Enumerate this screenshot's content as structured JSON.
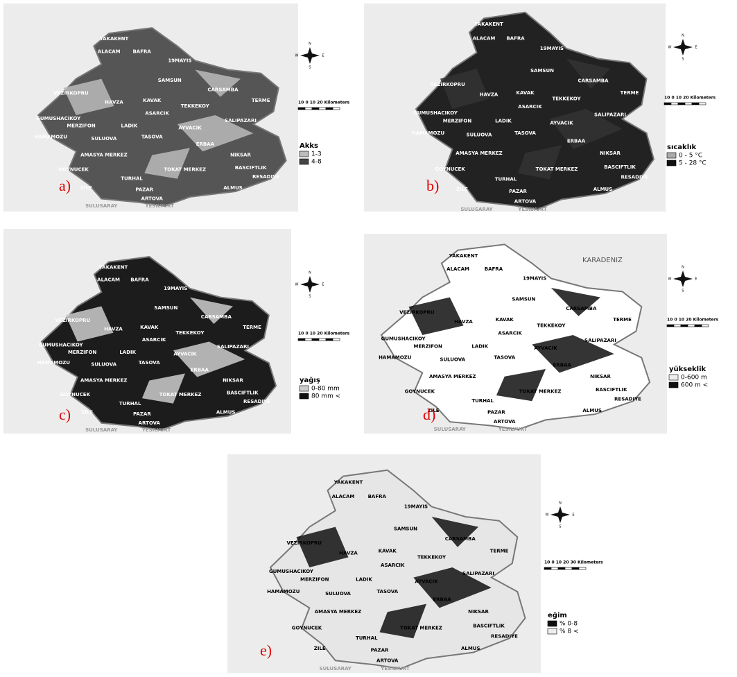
{
  "compass": [
    "N",
    "S",
    "W",
    "E"
  ],
  "places": [
    "YAKAKENT",
    "ALACAM",
    "BAFRA",
    "19MAYIS",
    "SAMSUN",
    "CARSAMBA",
    "VEZIRKOPRU",
    "HAVZA",
    "KAVAK",
    "TEKKEKOY",
    "TERME",
    "GUMUSHACIKOY",
    "MERZIFON",
    "ASARCIK",
    "SALIPAZARI",
    "LADIK",
    "AYVACIK",
    "HAMAMOZU",
    "SULUOVA",
    "TASOVA",
    "ERBAA",
    "AMASYA MERKEZ",
    "NIKSAR",
    "BASCIFTLIK",
    "GOYNUCEK",
    "RESADIYE",
    "TURHAL",
    "ZILE",
    "TOKAT MERKEZ",
    "ALMUS",
    "PAZAR",
    "ARTOVA",
    "SULUSARAY",
    "YESILYURT"
  ],
  "panels": [
    {
      "label": "a)",
      "scale_label": "10 0 10 20 Kilometers",
      "legend": {
        "title": "Akks",
        "items": [
          "1-3",
          "4-8"
        ]
      }
    },
    {
      "label": "b)",
      "scale_label": "10 0 10 20 Kilometers",
      "legend": {
        "title": "sıcaklık",
        "items": [
          "0 - 5 °C",
          "5 - 28 °C"
        ]
      }
    },
    {
      "label": "c)",
      "scale_label": "10 0 10 20 Kilometers",
      "legend": {
        "title": "yağış",
        "items": [
          "0-80 mm",
          "80 mm <"
        ]
      }
    },
    {
      "label": "d)",
      "scale_label": "10 0 10 20 Kilometers",
      "legend": {
        "title": "yükseklik",
        "items": [
          "0-600 m",
          "600 m <"
        ]
      },
      "sea_label": "KARADENIZ"
    },
    {
      "label": "e)",
      "scale_label": "10 0 10 20 30 Kilometers",
      "legend": {
        "title": "eğim",
        "items": [
          "% 0-8",
          "% 8 <"
        ]
      }
    }
  ]
}
